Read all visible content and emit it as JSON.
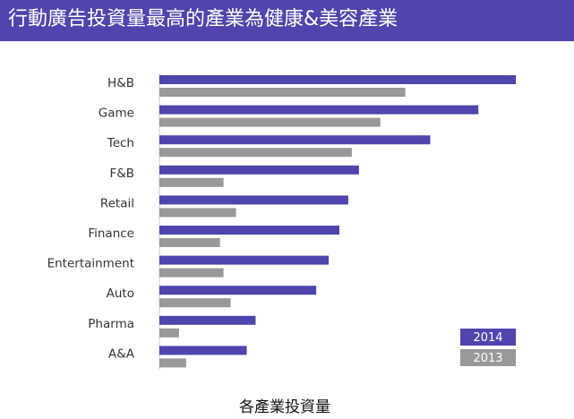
{
  "header": {
    "title": "行動廣告投資量最高的產業為健康&美容產業"
  },
  "chart_data": {
    "type": "bar",
    "orientation": "horizontal",
    "categories": [
      "H&B",
      "Game",
      "Tech",
      "F&B",
      "Retail",
      "Finance",
      "Entertainment",
      "Auto",
      "Pharma",
      "A&A"
    ],
    "series": [
      {
        "name": "2014",
        "color": "#4f45ad",
        "values": [
          100,
          89.5,
          76,
          56,
          53,
          50.5,
          47.5,
          44,
          27,
          24.5
        ]
      },
      {
        "name": "2013",
        "color": "#999999",
        "values": [
          69,
          62,
          54,
          18,
          21.5,
          17,
          18,
          20,
          5.5,
          7.5
        ]
      }
    ],
    "xlabel": "各產業投資量",
    "xlim": [
      0,
      100
    ],
    "axis_numbers_shown": false,
    "grid": false,
    "legend_position": "bottom-right"
  }
}
